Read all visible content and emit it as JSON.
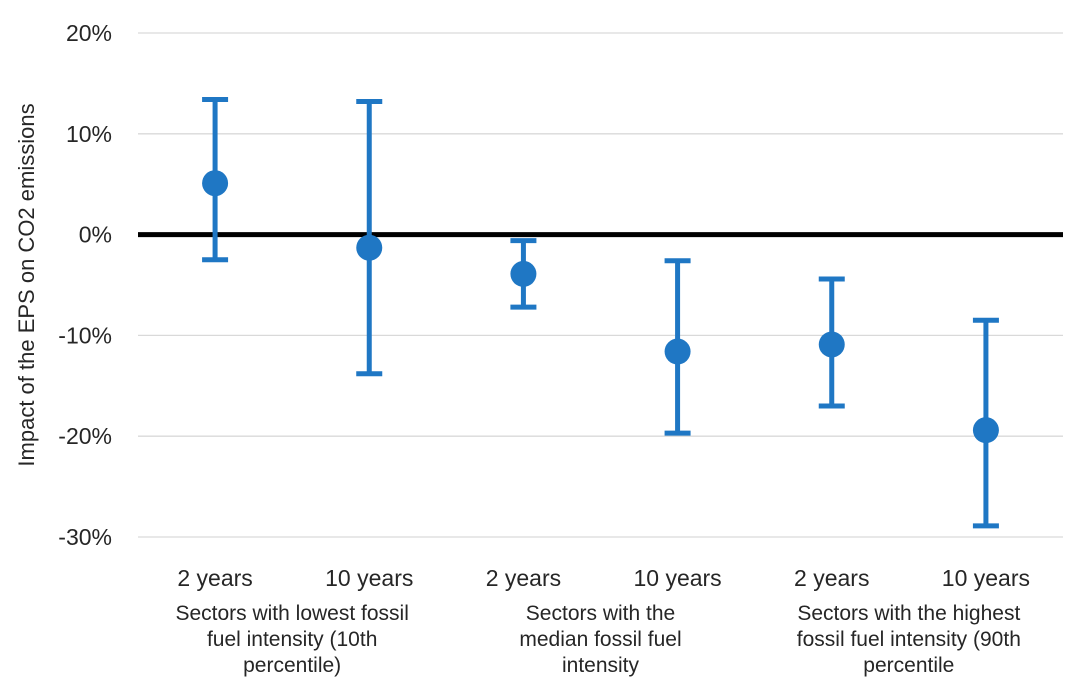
{
  "chart_data": {
    "type": "errorbar",
    "ylabel": "Impact  of the EPS on CO2 emissions",
    "ylim": [
      -30,
      20
    ],
    "yticks": [
      20,
      10,
      0,
      -10,
      -20,
      -30
    ],
    "ytick_labels": [
      "20%",
      "10%",
      "0%",
      "-10%",
      "-20%",
      "-30%"
    ],
    "grid": true,
    "zero_line": true,
    "color": "#1f77c4",
    "categories": [
      "2 years",
      "10 years",
      "2 years",
      "10 years",
      "2 years",
      "10 years"
    ],
    "points": [
      {
        "value": 5.1,
        "low": -2.5,
        "high": 13.4
      },
      {
        "value": -1.3,
        "low": -13.8,
        "high": 13.2
      },
      {
        "value": -3.9,
        "low": -7.2,
        "high": -0.6
      },
      {
        "value": -11.6,
        "low": -19.7,
        "high": -2.6
      },
      {
        "value": -10.9,
        "low": -17.0,
        "high": -4.4
      },
      {
        "value": -19.4,
        "low": -28.9,
        "high": -8.5
      }
    ],
    "groups": [
      {
        "label_lines": [
          "Sectors with lowest fossil",
          "fuel intensity (10th",
          "percentile)"
        ]
      },
      {
        "label_lines": [
          "Sectors with the",
          "median fossil fuel",
          "intensity"
        ]
      },
      {
        "label_lines": [
          "Sectors with the highest",
          "fossil fuel intensity (90th",
          "percentile"
        ]
      }
    ]
  }
}
